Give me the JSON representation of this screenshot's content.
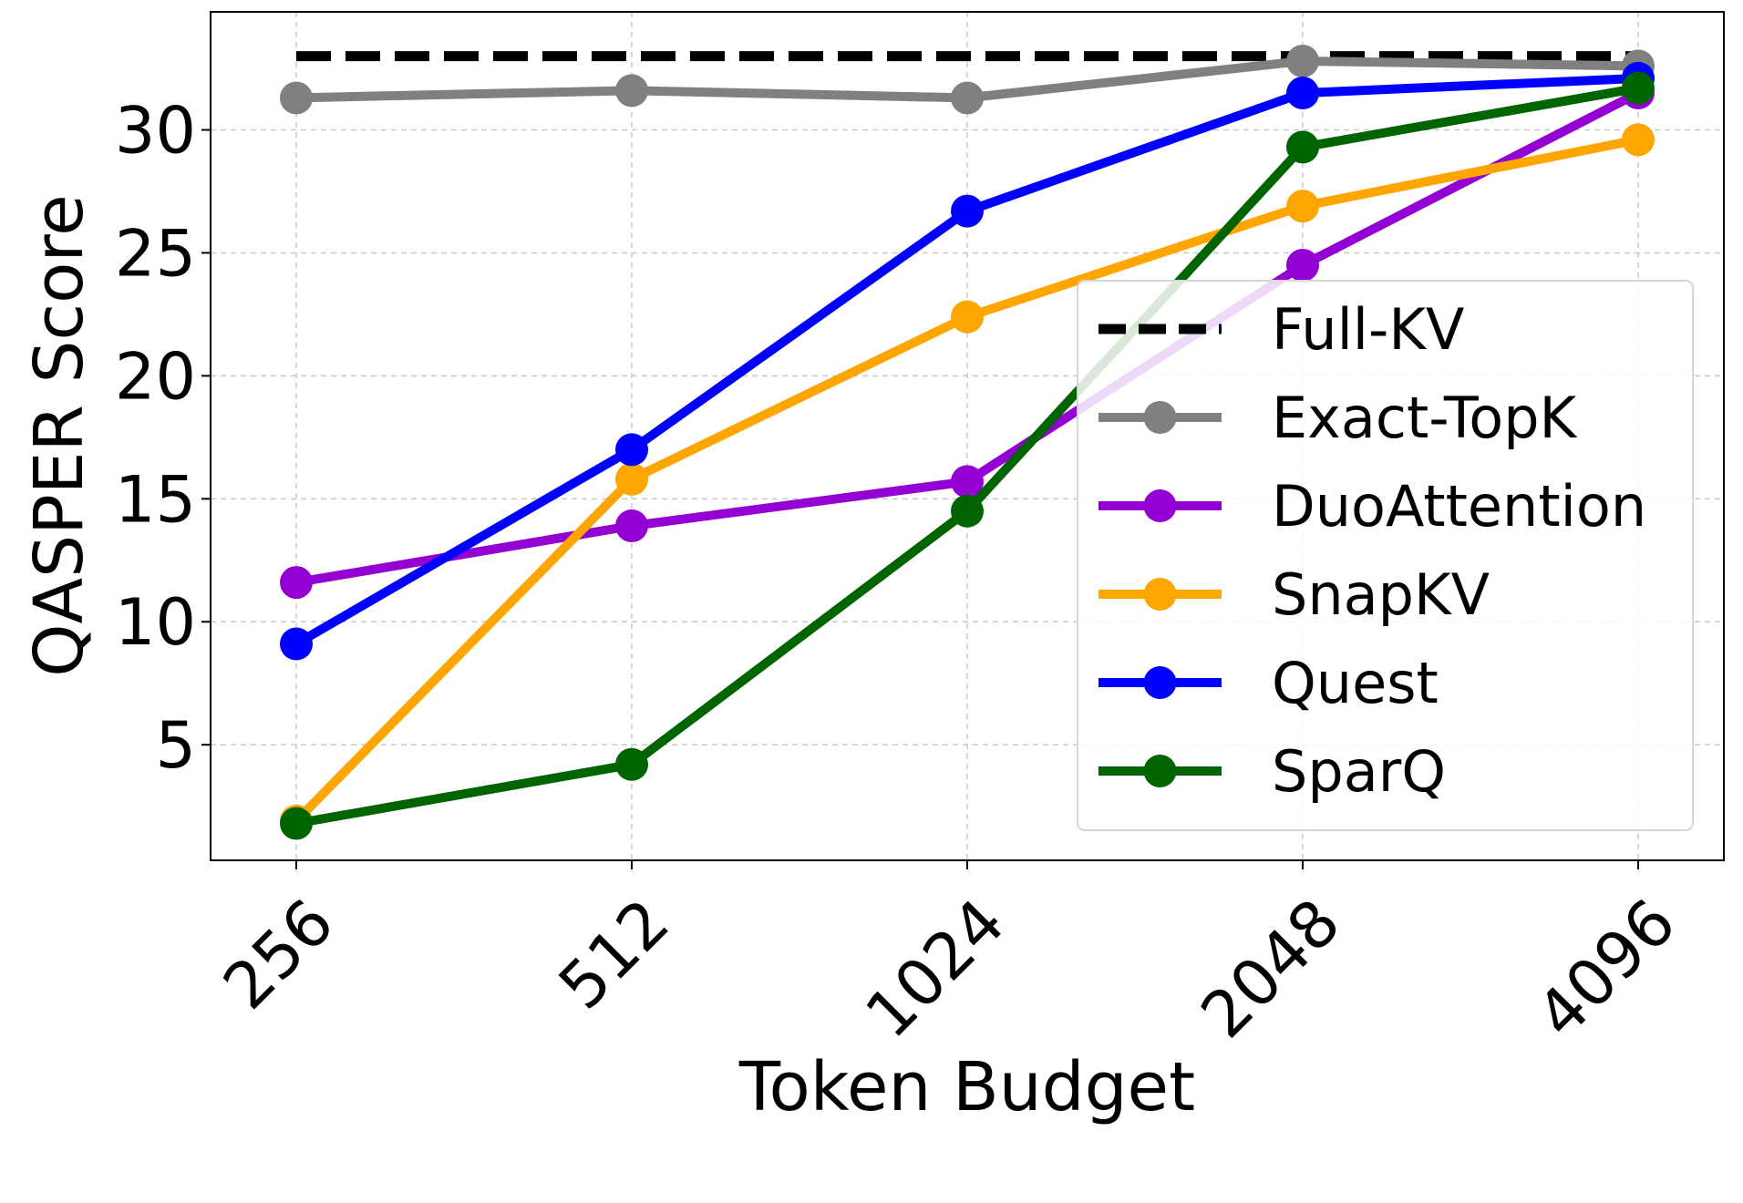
{
  "chart_data": {
    "type": "line",
    "x": [
      256,
      512,
      1024,
      2048,
      4096
    ],
    "x_tick_labels": [
      "256",
      "512",
      "1024",
      "2048",
      "4096"
    ],
    "xlabel": "Token Budget",
    "ylabel": "QASPER Score",
    "ylim": [
      0.3,
      34.8
    ],
    "y_ticks": [
      5,
      10,
      15,
      20,
      25,
      30
    ],
    "y_tick_labels": [
      "5",
      "10",
      "15",
      "20",
      "25",
      "30"
    ],
    "grid": true,
    "legend_position": "center-right",
    "series": [
      {
        "name": "Full-KV",
        "values": [
          33.0,
          33.0,
          33.0,
          33.0,
          33.0
        ],
        "color": "#000000",
        "dashed": true,
        "markers": false
      },
      {
        "name": "Exact-TopK",
        "values": [
          31.3,
          31.6,
          31.3,
          32.8,
          32.6
        ],
        "color": "#808080",
        "dashed": false,
        "markers": true
      },
      {
        "name": "DuoAttention",
        "values": [
          11.6,
          13.9,
          15.7,
          24.5,
          31.5
        ],
        "color": "#9400D3",
        "dashed": false,
        "markers": true
      },
      {
        "name": "SnapKV",
        "values": [
          1.9,
          15.8,
          22.4,
          26.9,
          29.6
        ],
        "color": "#FFA500",
        "dashed": false,
        "markers": true
      },
      {
        "name": "Quest",
        "values": [
          9.1,
          17.0,
          26.7,
          31.5,
          32.1
        ],
        "color": "#0000FF",
        "dashed": false,
        "markers": true
      },
      {
        "name": "SparQ",
        "values": [
          1.8,
          4.2,
          14.5,
          29.3,
          31.7
        ],
        "color": "#006400",
        "dashed": false,
        "markers": true
      }
    ]
  }
}
